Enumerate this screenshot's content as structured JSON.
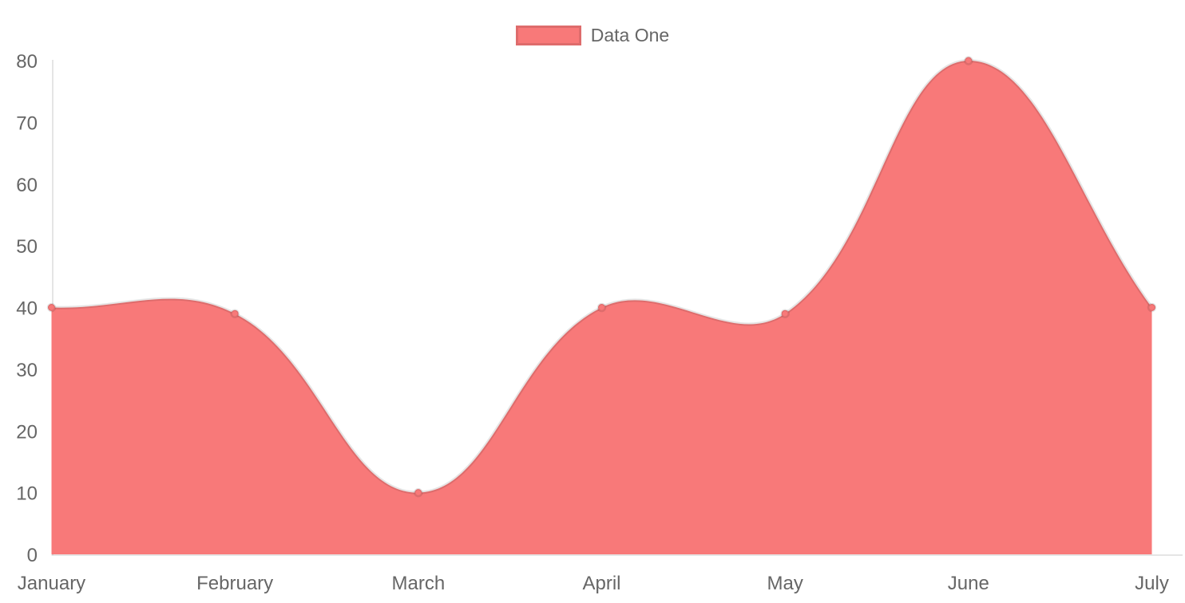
{
  "chart_data": {
    "type": "area",
    "title": "",
    "categories": [
      "January",
      "February",
      "March",
      "April",
      "May",
      "June",
      "July"
    ],
    "series": [
      {
        "name": "Data One",
        "values": [
          40,
          39,
          10,
          40,
          39,
          80,
          40
        ]
      }
    ],
    "xlabel": "",
    "ylabel": "",
    "ylim": [
      0,
      80
    ],
    "y_ticks": [
      0,
      10,
      20,
      30,
      40,
      50,
      60,
      70,
      80
    ],
    "grid": false,
    "legend_position": "top-center",
    "line_tension": 0.4,
    "colors": {
      "fill": "#f87979",
      "line_border": "rgba(0,0,0,0.10)",
      "point_fill": "#f87979",
      "point_border": "rgba(0,0,0,0.10)",
      "axis_line": "rgba(0,0,0,0.10)",
      "tick_text": "#666666"
    }
  },
  "legend": {
    "items": [
      {
        "label": "Data One",
        "color": "#f87979"
      }
    ]
  }
}
